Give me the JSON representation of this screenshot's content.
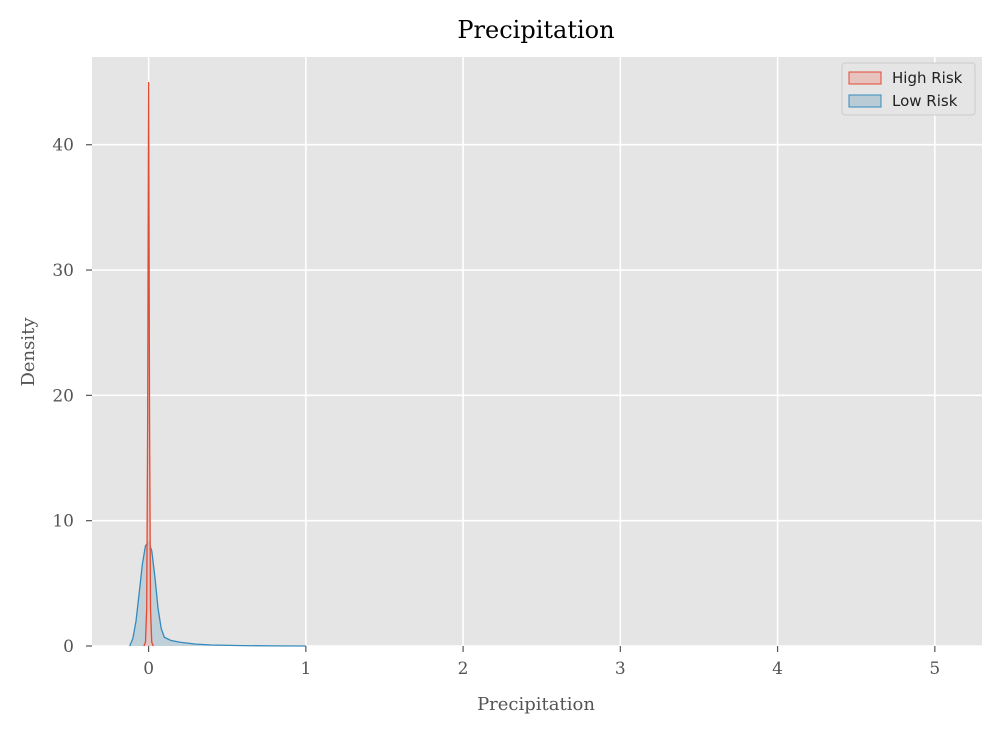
{
  "chart_data": {
    "type": "area",
    "title": "Precipitation",
    "xlabel": "Precipitation",
    "ylabel": "Density",
    "xlim": [
      -0.36,
      5.3
    ],
    "ylim": [
      0,
      47
    ],
    "x_ticks": [
      "0",
      "1",
      "2",
      "3",
      "4",
      "5"
    ],
    "y_ticks": [
      "0",
      "10",
      "20",
      "30",
      "40"
    ],
    "grid": true,
    "legend_position": "top-right",
    "series": [
      {
        "name": "High Risk",
        "line_color": "#E24A33",
        "fill_color": "#E8C2BC",
        "points": [
          [
            -0.03,
            0
          ],
          [
            -0.02,
            0.3
          ],
          [
            -0.012,
            3
          ],
          [
            -0.006,
            18
          ],
          [
            -0.003,
            32
          ],
          [
            0.0,
            45
          ],
          [
            0.003,
            32
          ],
          [
            0.006,
            18
          ],
          [
            0.012,
            3
          ],
          [
            0.02,
            0.3
          ],
          [
            0.03,
            0
          ]
        ]
      },
      {
        "name": "Low Risk",
        "line_color": "#348ABD",
        "fill_color": "#B9CCD6",
        "points": [
          [
            -0.12,
            0
          ],
          [
            -0.1,
            0.6
          ],
          [
            -0.08,
            2.0
          ],
          [
            -0.06,
            4.2
          ],
          [
            -0.04,
            6.5
          ],
          [
            -0.02,
            8.0
          ],
          [
            0.0,
            8.3
          ],
          [
            0.02,
            7.6
          ],
          [
            0.04,
            5.5
          ],
          [
            0.06,
            3.0
          ],
          [
            0.08,
            1.4
          ],
          [
            0.1,
            0.7
          ],
          [
            0.14,
            0.45
          ],
          [
            0.2,
            0.3
          ],
          [
            0.3,
            0.15
          ],
          [
            0.4,
            0.08
          ],
          [
            0.6,
            0.03
          ],
          [
            0.8,
            0.01
          ],
          [
            1.0,
            0.0
          ]
        ]
      }
    ]
  },
  "colors": {
    "plot_background": "#E5E5E5",
    "grid": "#FFFFFF",
    "text": "#555555",
    "title": "#000000"
  }
}
